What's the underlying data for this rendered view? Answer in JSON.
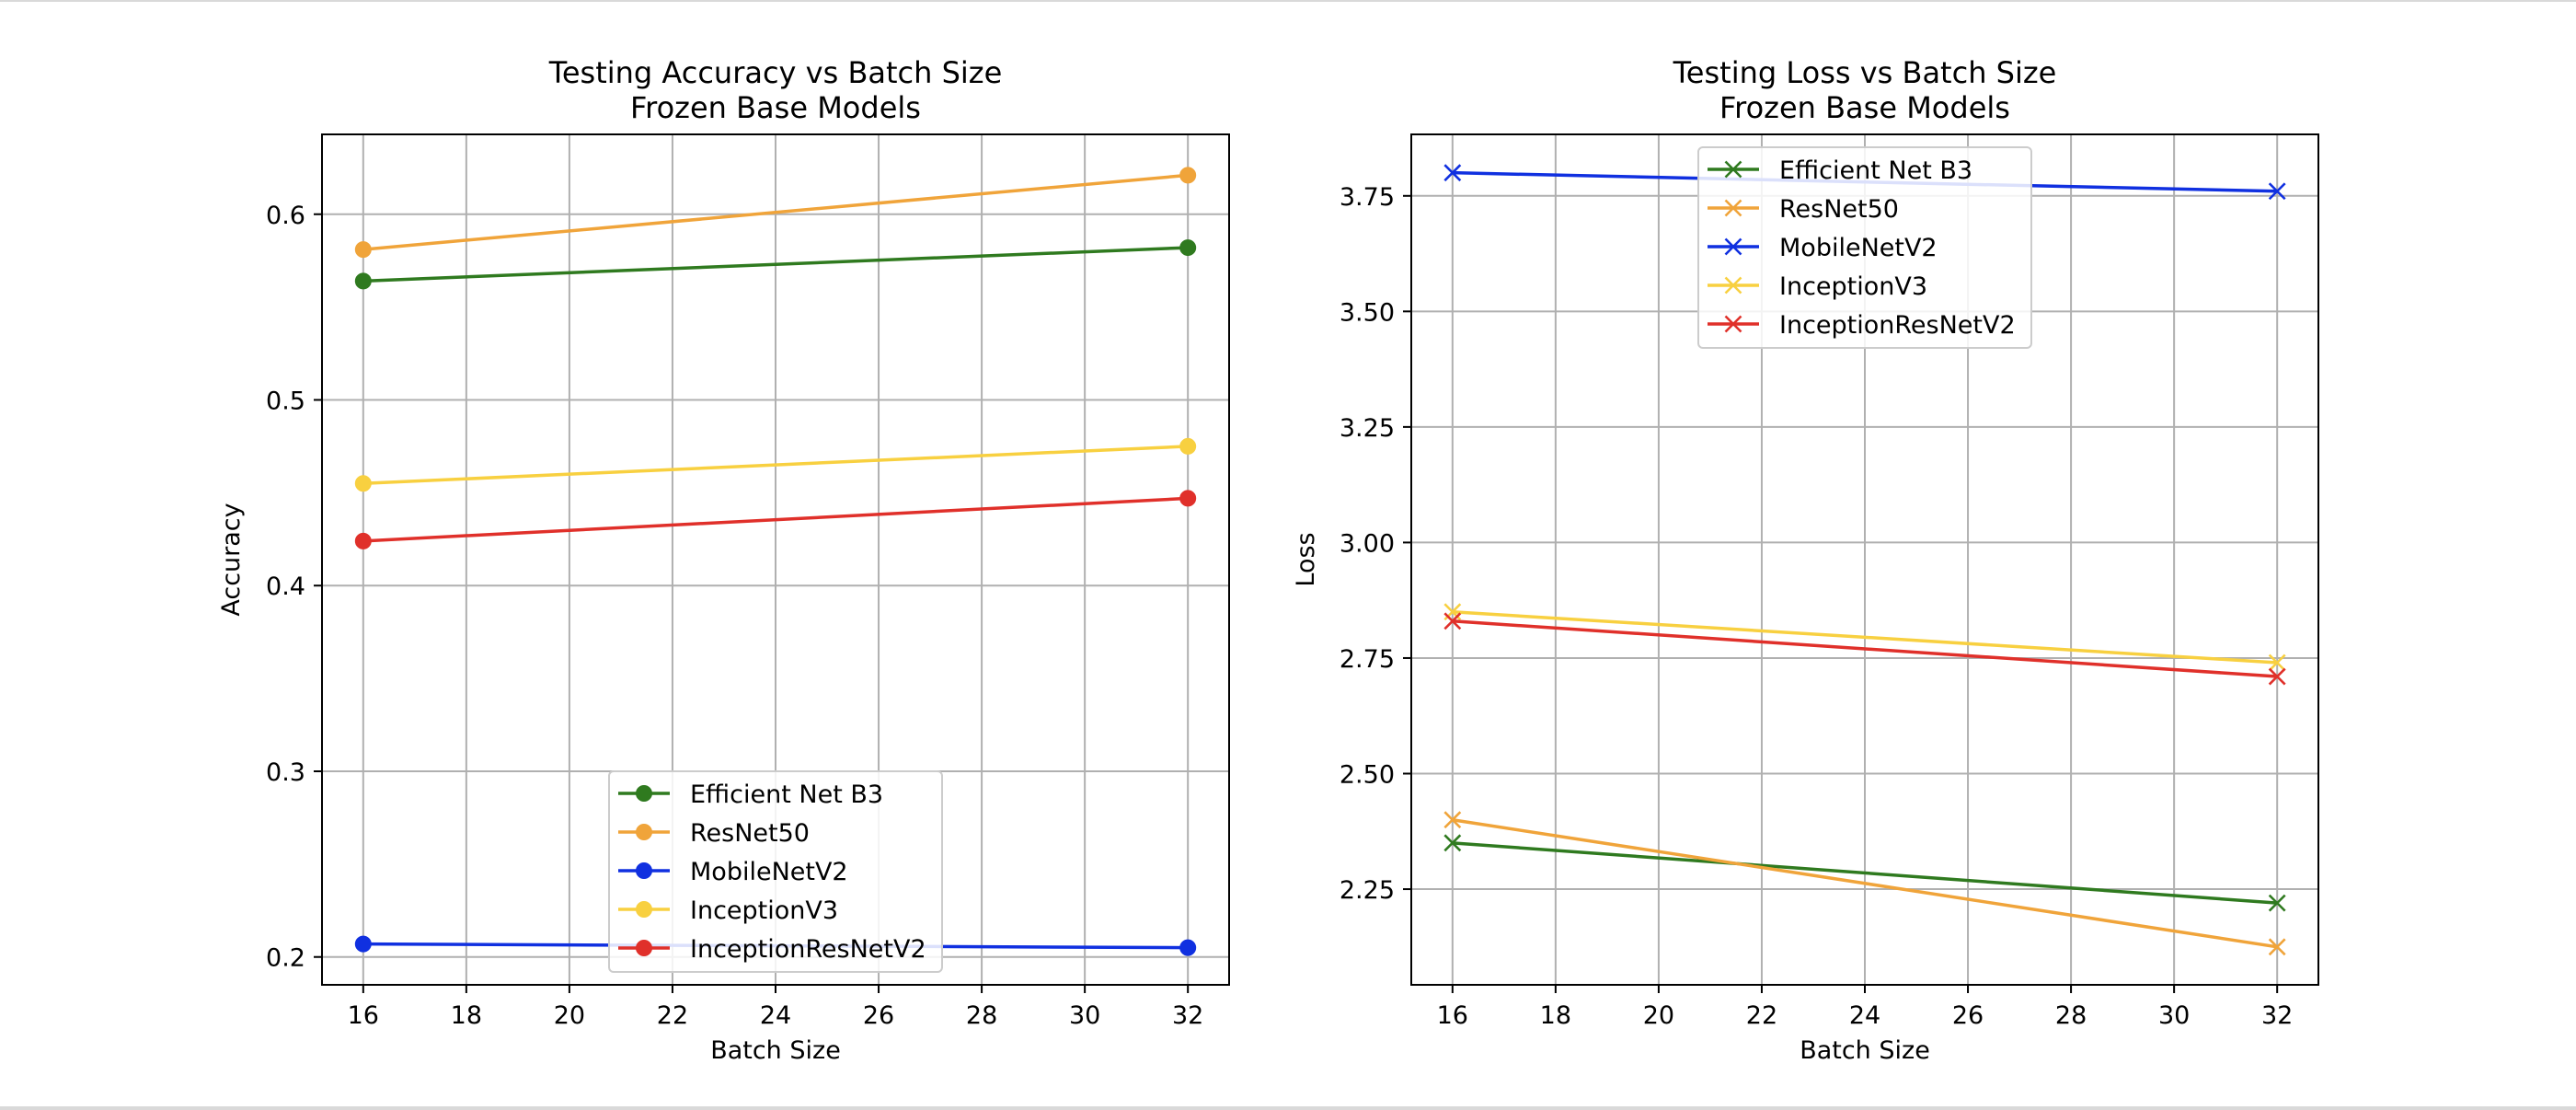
{
  "chart_data": [
    {
      "type": "line",
      "title": "Testing Accuracy vs Batch Size",
      "subtitle": "Frozen Base Models",
      "xlabel": "Batch Size",
      "ylabel": "Accuracy",
      "x": [
        16,
        32
      ],
      "xlim": [
        15.2,
        32.8
      ],
      "ylim": [
        0.185,
        0.643
      ],
      "xticks": [
        16,
        18,
        20,
        22,
        24,
        26,
        28,
        30,
        32
      ],
      "yticks": [
        0.2,
        0.3,
        0.4,
        0.5,
        0.6
      ],
      "ytick_labels": [
        "0.2",
        "0.3",
        "0.4",
        "0.5",
        "0.6"
      ],
      "grid": true,
      "marker": "circle",
      "legend_position": "lower-center",
      "series": [
        {
          "name": "Efficient Net B3",
          "values": [
            0.564,
            0.582
          ],
          "color": "#2f7a1f"
        },
        {
          "name": "ResNet50",
          "values": [
            0.581,
            0.621
          ],
          "color": "#f0a43a"
        },
        {
          "name": "MobileNetV2",
          "values": [
            0.207,
            0.205
          ],
          "color": "#1030e0"
        },
        {
          "name": "InceptionV3",
          "values": [
            0.455,
            0.475
          ],
          "color": "#f8d040"
        },
        {
          "name": "InceptionResNetV2",
          "values": [
            0.424,
            0.447
          ],
          "color": "#e0302a"
        }
      ]
    },
    {
      "type": "line",
      "title": "Testing Loss vs Batch Size",
      "subtitle": "Frozen Base Models",
      "xlabel": "Batch Size",
      "ylabel": "Loss",
      "x": [
        16,
        32
      ],
      "xlim": [
        15.2,
        32.8
      ],
      "ylim": [
        2.043,
        3.883
      ],
      "xticks": [
        16,
        18,
        20,
        22,
        24,
        26,
        28,
        30,
        32
      ],
      "yticks": [
        2.25,
        2.5,
        2.75,
        3.0,
        3.25,
        3.5,
        3.75
      ],
      "ytick_labels": [
        "2.25",
        "2.50",
        "2.75",
        "3.00",
        "3.25",
        "3.50",
        "3.75"
      ],
      "grid": true,
      "marker": "x",
      "legend_position": "upper-center",
      "series": [
        {
          "name": "Efficient Net B3",
          "values": [
            2.35,
            2.22
          ],
          "color": "#2f7a1f"
        },
        {
          "name": "ResNet50",
          "values": [
            2.4,
            2.125
          ],
          "color": "#f0a43a"
        },
        {
          "name": "MobileNetV2",
          "values": [
            3.8,
            3.76
          ],
          "color": "#1030e0"
        },
        {
          "name": "InceptionV3",
          "values": [
            2.85,
            2.74
          ],
          "color": "#f8d040"
        },
        {
          "name": "InceptionResNetV2",
          "values": [
            2.83,
            2.71
          ],
          "color": "#e0302a"
        }
      ]
    }
  ]
}
